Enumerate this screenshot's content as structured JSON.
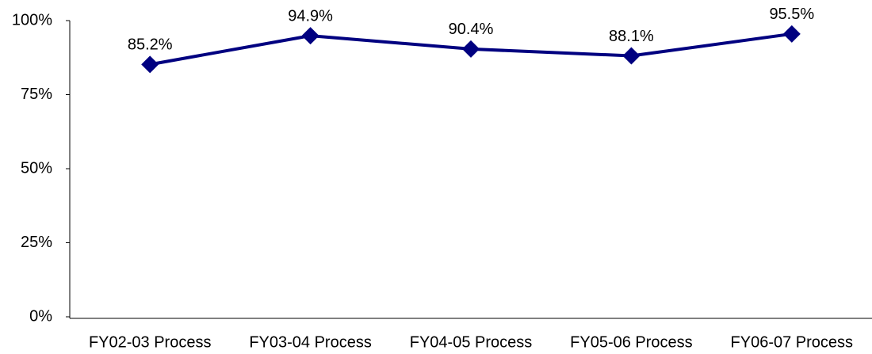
{
  "chart_data": {
    "type": "line",
    "categories": [
      "FY02-03 Process",
      "FY03-04 Process",
      "FY04-05 Process",
      "FY05-06 Process",
      "FY06-07 Process"
    ],
    "values": [
      85.2,
      94.9,
      90.4,
      88.1,
      95.5
    ],
    "value_labels": [
      "85.2%",
      "94.9%",
      "90.4%",
      "88.1%",
      "95.5%"
    ],
    "color": "#000080",
    "ylim": [
      0,
      100
    ],
    "yticks": [
      {
        "value": 0,
        "label": "0%"
      },
      {
        "value": 25,
        "label": "25%"
      },
      {
        "value": 50,
        "label": "50%"
      },
      {
        "value": 75,
        "label": "75%"
      },
      {
        "value": 100,
        "label": "100%"
      }
    ],
    "grid": false
  }
}
